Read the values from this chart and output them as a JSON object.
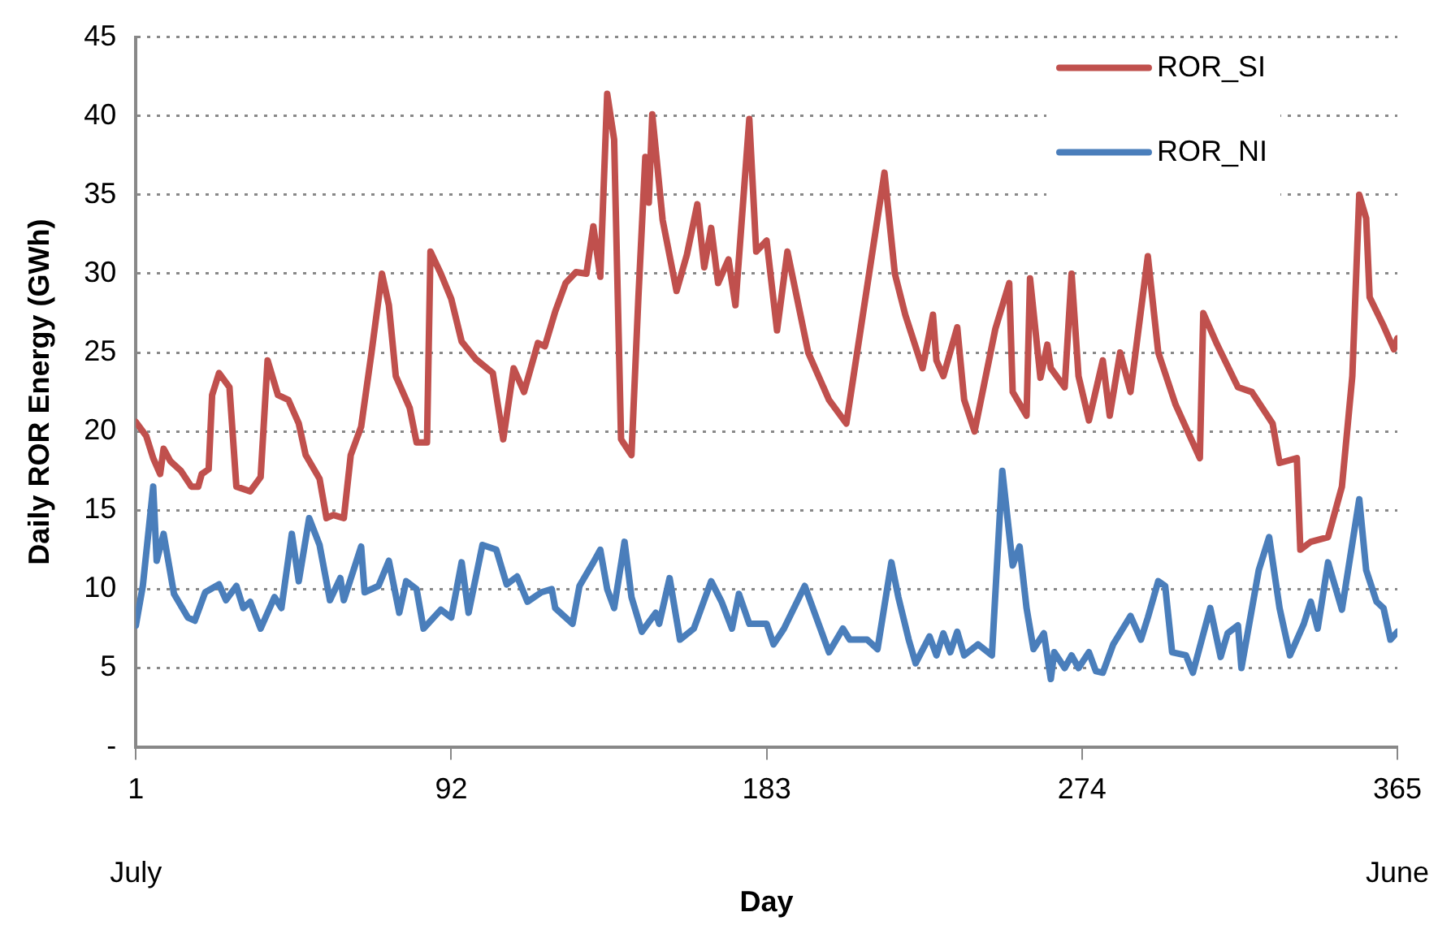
{
  "chart_data": {
    "type": "line",
    "xlabel": "Day",
    "ylabel": "Daily ROR Energy (GWh)",
    "xlim": [
      1,
      365
    ],
    "xticks": [
      1,
      92,
      183,
      274,
      365
    ],
    "annotations": [
      "July",
      "June"
    ],
    "ylim": [
      0,
      45
    ],
    "yticks": [
      {
        "value": 0,
        "label": "-"
      },
      5,
      10,
      15,
      20,
      25,
      30,
      35,
      40,
      45
    ],
    "grid": "y",
    "legend": "top right",
    "marker": "none",
    "series": [
      {
        "name": "ROR_SI",
        "color": "#c0504d",
        "x": [
          1,
          4,
          6,
          8,
          9,
          11,
          14,
          17,
          19,
          20,
          22,
          23,
          25,
          28,
          30,
          34,
          37,
          39,
          42,
          45,
          48,
          50,
          54,
          56,
          58,
          61,
          63,
          66,
          69,
          72,
          74,
          76,
          80,
          82,
          85,
          86,
          89,
          92,
          95,
          99,
          104,
          107,
          110,
          113,
          117,
          119,
          122,
          125,
          128,
          131,
          133,
          135,
          137,
          139,
          141,
          144,
          146,
          148,
          149,
          150,
          153,
          157,
          160,
          163,
          165,
          167,
          169,
          172,
          174,
          178,
          180,
          183,
          186,
          189,
          195,
          201,
          205,
          206,
          217,
          220,
          223,
          228,
          231,
          232,
          234,
          238,
          240,
          243,
          249,
          253,
          254,
          258,
          259,
          262,
          264,
          265,
          269,
          271,
          273,
          276,
          280,
          282,
          285,
          288,
          293,
          296,
          301,
          308,
          309,
          313,
          319,
          323,
          329,
          331,
          336,
          337,
          340,
          345,
          349,
          352,
          354,
          356,
          357,
          361,
          364,
          365
        ],
        "values": [
          20.6,
          19.7,
          18.3,
          17.3,
          18.9,
          18.1,
          17.5,
          16.5,
          16.5,
          17.3,
          17.6,
          22.3,
          23.7,
          22.8,
          16.5,
          16.2,
          17.1,
          24.5,
          22.3,
          22,
          20.5,
          18.5,
          17,
          14.5,
          14.7,
          14.5,
          18.5,
          20.3,
          25,
          30,
          28,
          23.5,
          21.5,
          19.3,
          19.3,
          31.4,
          30,
          28.4,
          25.7,
          24.6,
          23.7,
          19.5,
          24,
          22.5,
          25.6,
          25.4,
          27.6,
          29.4,
          30.1,
          30,
          33,
          29.8,
          41.4,
          38.5,
          19.5,
          18.5,
          28.5,
          37.4,
          34.5,
          40.1,
          33.4,
          28.9,
          31.2,
          34.4,
          30.4,
          32.9,
          29.4,
          30.9,
          28,
          39.8,
          31.4,
          32.1,
          26.4,
          31.4,
          25,
          22,
          20.8,
          20.5,
          36.4,
          30,
          27.4,
          24,
          27.4,
          24.5,
          23.5,
          26.6,
          22,
          20,
          26.5,
          29.4,
          22.5,
          21,
          29.7,
          23.4,
          25.5,
          24,
          22.8,
          30,
          23.5,
          20.7,
          24.5,
          21,
          25,
          22.5,
          31.1,
          25,
          21.7,
          18.3,
          27.5,
          25.5,
          22.8,
          22.5,
          20.5,
          18,
          18.3,
          12.5,
          13,
          13.3,
          16.5,
          23.5,
          35,
          33.5,
          28.5,
          26.7,
          25.2,
          25.9
        ]
      },
      {
        "name": "ROR_NI",
        "color": "#4a7ebb",
        "x": [
          1,
          3,
          6,
          7,
          9,
          12,
          16,
          18,
          21,
          25,
          27,
          30,
          32,
          34,
          37,
          41,
          43,
          46,
          48,
          51,
          54,
          57,
          60,
          61,
          66,
          67,
          71,
          74,
          77,
          79,
          82,
          84,
          89,
          92,
          95,
          97,
          101,
          105,
          108,
          111,
          114,
          118,
          121,
          122,
          127,
          129,
          133,
          135,
          137,
          139,
          142,
          144,
          147,
          151,
          152,
          155,
          158,
          162,
          165,
          167,
          170,
          173,
          175,
          178,
          183,
          185,
          188,
          194,
          198,
          201,
          205,
          207,
          212,
          215,
          219,
          221,
          224,
          226,
          230,
          232,
          234,
          236,
          238,
          240,
          244,
          248,
          251,
          254,
          256,
          258,
          260,
          263,
          265,
          266,
          269,
          271,
          273,
          276,
          278,
          280,
          283,
          288,
          291,
          293,
          296,
          298,
          300,
          304,
          306,
          311,
          314,
          316,
          319,
          320,
          325,
          328,
          331,
          334,
          338,
          340,
          342,
          345,
          349,
          354,
          356,
          359,
          361,
          363,
          365
        ],
        "values": [
          7.7,
          10.2,
          16.5,
          11.8,
          13.5,
          9.7,
          8.2,
          8,
          9.8,
          10.3,
          9.3,
          10.2,
          8.8,
          9.2,
          7.5,
          9.5,
          8.8,
          13.5,
          10.5,
          14.5,
          12.8,
          9.3,
          10.7,
          9.3,
          12.7,
          9.8,
          10.2,
          11.8,
          8.5,
          10.5,
          10,
          7.5,
          8.7,
          8.2,
          11.7,
          8.5,
          12.8,
          12.5,
          10.3,
          10.8,
          9.2,
          9.8,
          10,
          8.8,
          7.8,
          10.2,
          11.7,
          12.5,
          10,
          8.8,
          13,
          9.5,
          7.3,
          8.5,
          7.8,
          10.7,
          6.8,
          7.5,
          9.3,
          10.5,
          9.2,
          7.5,
          9.7,
          7.8,
          7.8,
          6.5,
          7.5,
          10.2,
          7.8,
          6,
          7.5,
          6.8,
          6.8,
          6.2,
          11.7,
          9.5,
          6.8,
          5.3,
          7,
          5.8,
          7.2,
          6,
          7.3,
          5.8,
          6.5,
          5.8,
          17.5,
          11.5,
          12.7,
          8.8,
          6.2,
          7.2,
          4.3,
          6,
          5,
          5.8,
          5,
          6,
          4.8,
          4.7,
          6.5,
          8.3,
          6.8,
          8.2,
          10.5,
          10.2,
          6,
          5.8,
          4.7,
          8.8,
          5.7,
          7.2,
          7.7,
          5,
          11.2,
          13.3,
          8.8,
          5.8,
          7.8,
          9.2,
          7.5,
          11.7,
          8.7,
          15.7,
          11.2,
          9.2,
          8.8,
          6.8,
          7.3
        ]
      }
    ]
  }
}
